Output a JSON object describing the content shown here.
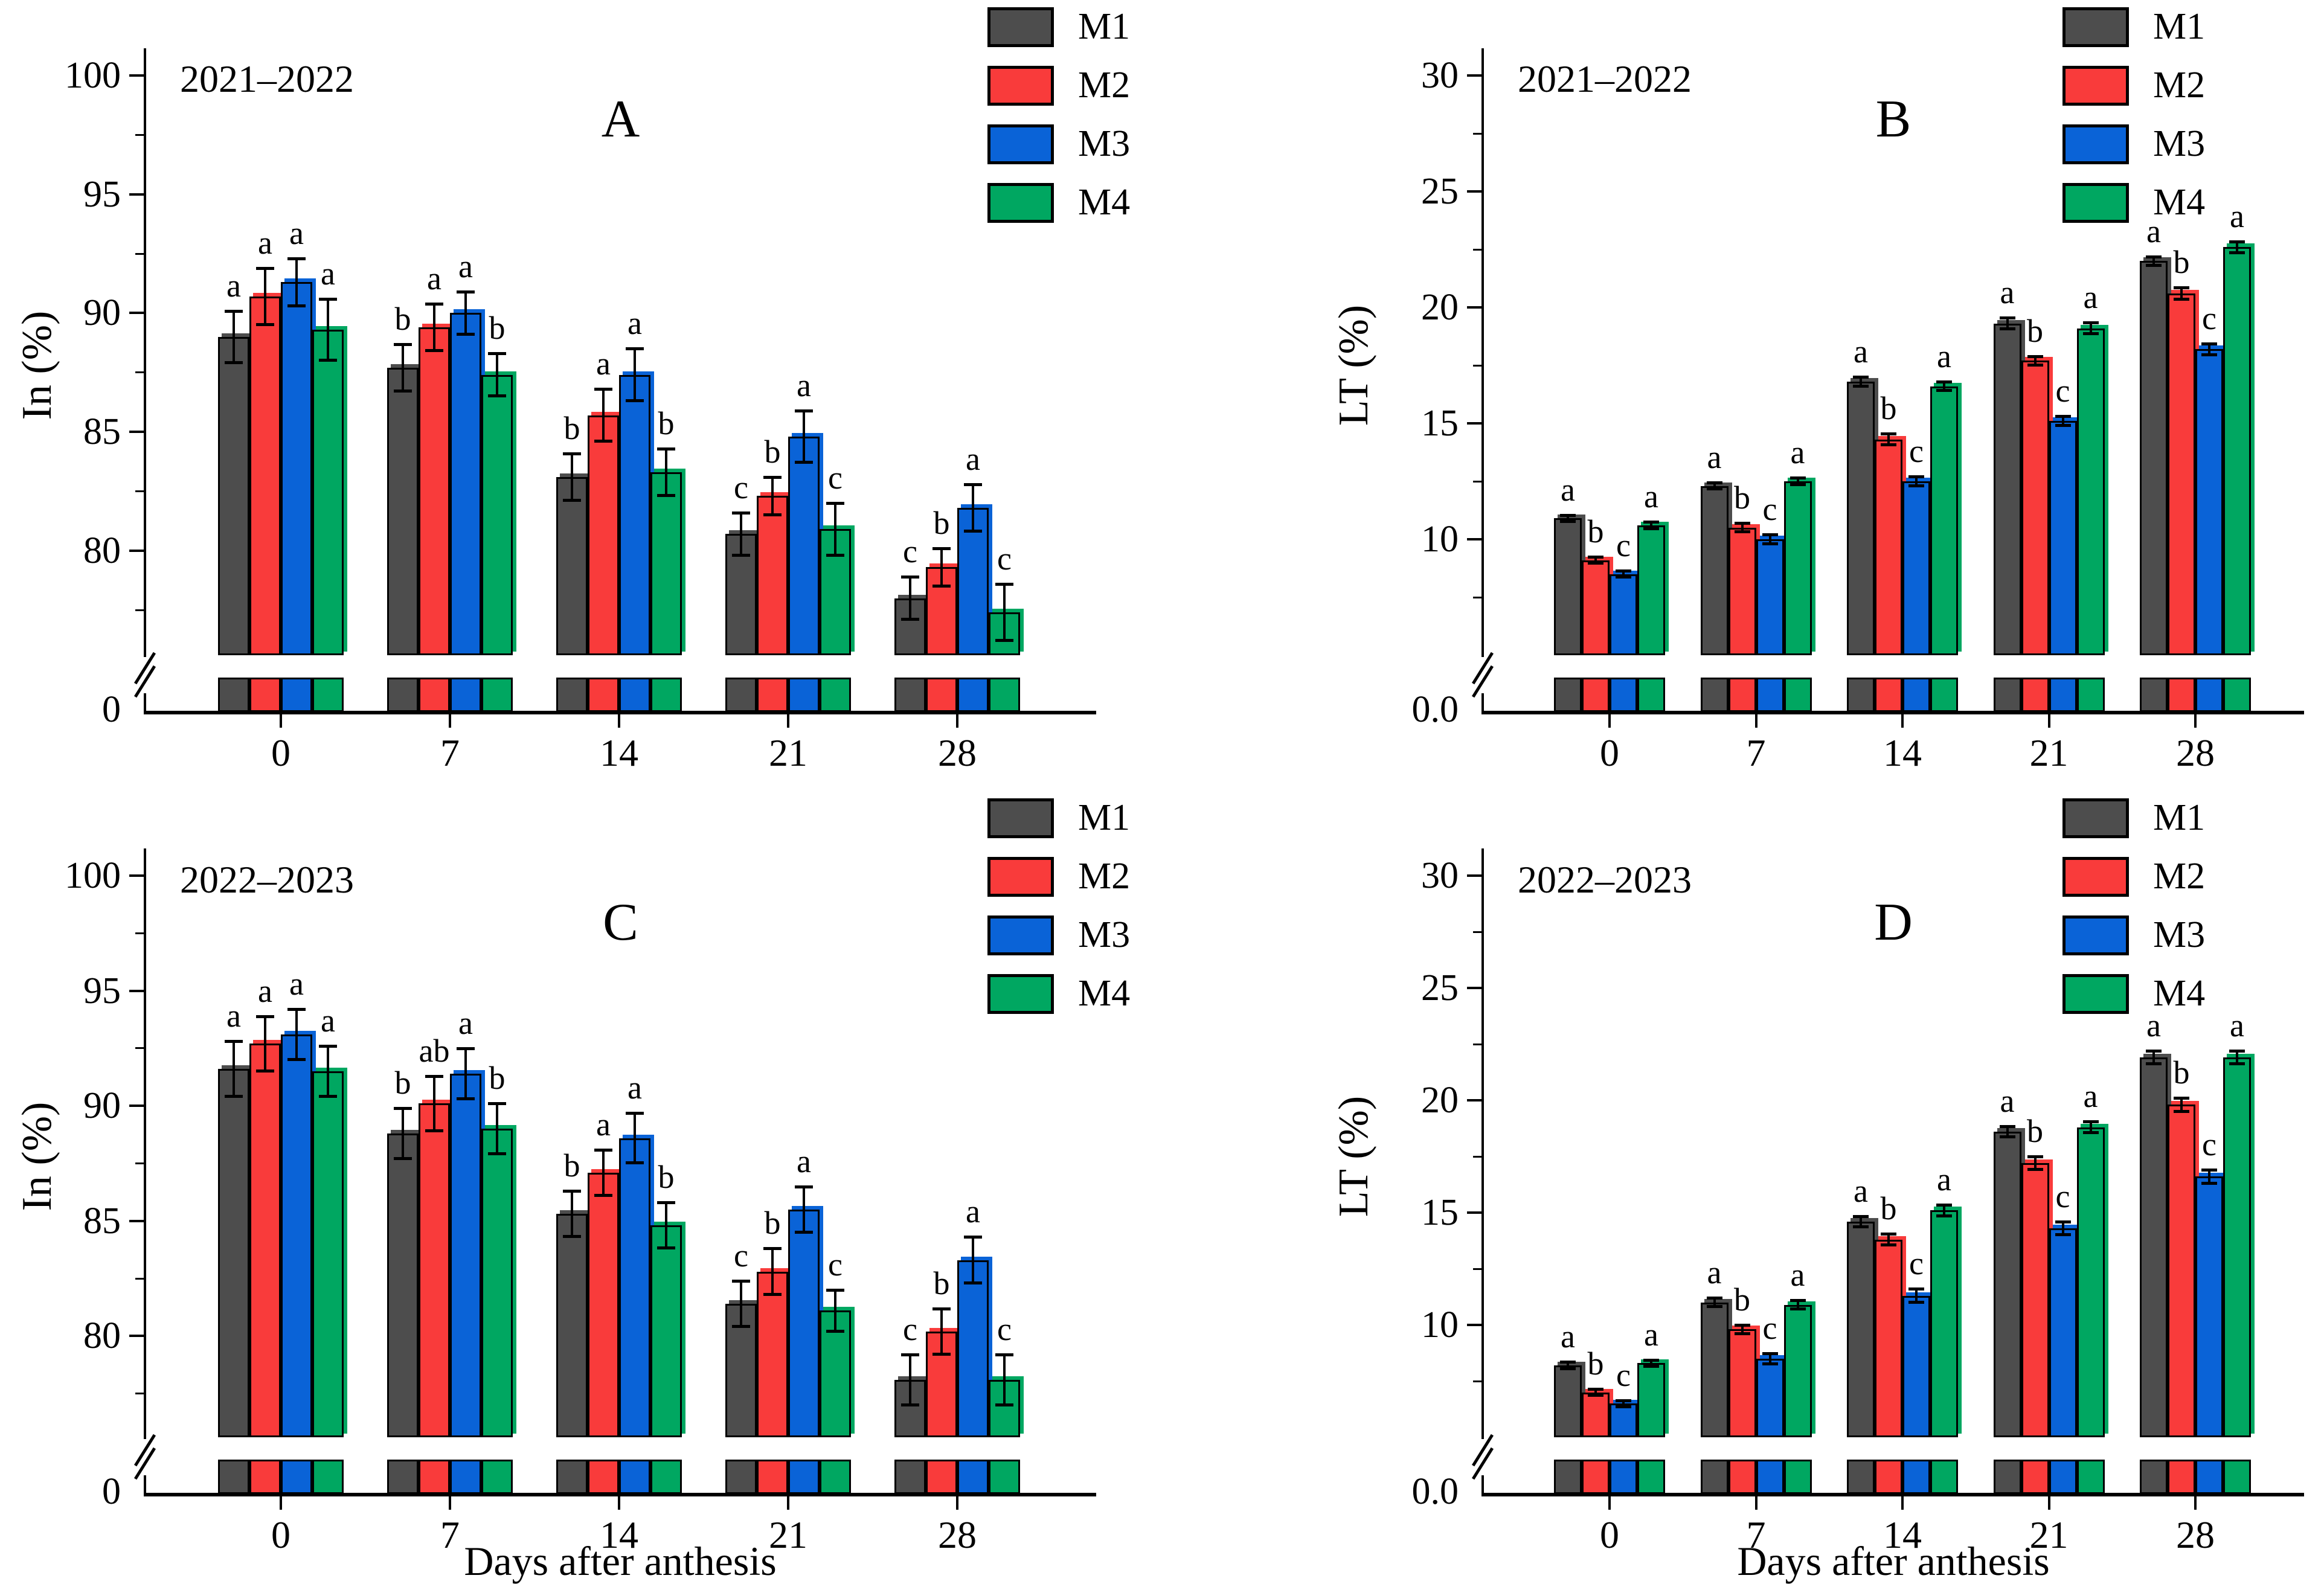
{
  "figure": {
    "xlabel": "Days after anthesis",
    "legend_labels": [
      "M1",
      "M2",
      "M3",
      "M4"
    ],
    "colors": {
      "M1": "#4D4D4D",
      "M2": "#F93B3B",
      "M3": "#0A63D7",
      "M4": "#00A761"
    }
  },
  "chart_data": [
    {
      "panel": "A",
      "type": "bar",
      "season": "2021–2022",
      "ylabel": "In (%)",
      "categories": [
        "0",
        "7",
        "14",
        "21",
        "28"
      ],
      "ylim_main": [
        75.6,
        100
      ],
      "yticks": [
        80,
        85,
        90,
        95,
        100
      ],
      "yticks_minor": [
        77.5,
        82.5,
        87.5,
        92.5,
        97.5
      ],
      "broken_axis_label": "0",
      "grid": false,
      "legend_position": "top-right",
      "series": [
        {
          "name": "M1",
          "color": "#4D4D4D",
          "values": [
            89.0,
            87.7,
            83.1,
            80.7,
            78.0
          ],
          "errors": [
            1.1,
            1.0,
            1.0,
            0.9,
            0.9
          ],
          "letters": [
            "a",
            "b",
            "b",
            "c",
            "c"
          ]
        },
        {
          "name": "M2",
          "color": "#F93B3B",
          "values": [
            90.7,
            89.4,
            85.7,
            82.3,
            79.3
          ],
          "errors": [
            1.2,
            1.0,
            1.1,
            0.8,
            0.8
          ],
          "letters": [
            "a",
            "a",
            "a",
            "b",
            "b"
          ]
        },
        {
          "name": "M3",
          "color": "#0A63D7",
          "values": [
            91.3,
            90.0,
            87.4,
            84.8,
            81.8
          ],
          "errors": [
            1.0,
            0.9,
            1.1,
            1.1,
            1.0
          ],
          "letters": [
            "a",
            "a",
            "a",
            "a",
            "a"
          ]
        },
        {
          "name": "M4",
          "color": "#00A761",
          "values": [
            89.3,
            87.4,
            83.3,
            80.9,
            77.4
          ],
          "errors": [
            1.3,
            0.9,
            1.0,
            1.1,
            1.2
          ],
          "letters": [
            "a",
            "b",
            "b",
            "c",
            "c"
          ]
        }
      ]
    },
    {
      "panel": "B",
      "type": "bar",
      "season": "2021–2022",
      "ylabel": "LT (%)",
      "categories": [
        "0",
        "7",
        "14",
        "21",
        "28"
      ],
      "ylim_main": [
        5.0,
        30
      ],
      "yticks": [
        10,
        15,
        20,
        25,
        30
      ],
      "yticks_minor": [
        7.5,
        12.5,
        17.5,
        22.5,
        27.5
      ],
      "broken_axis_label": "0.0",
      "grid": false,
      "legend_position": "top-right",
      "series": [
        {
          "name": "M1",
          "color": "#4D4D4D",
          "values": [
            10.9,
            12.3,
            16.8,
            19.3,
            22.0
          ],
          "errors": [
            0.15,
            0.15,
            0.2,
            0.25,
            0.2
          ],
          "letters": [
            "a",
            "a",
            "a",
            "a",
            "a"
          ]
        },
        {
          "name": "M2",
          "color": "#F93B3B",
          "values": [
            9.1,
            10.5,
            14.3,
            17.7,
            20.6
          ],
          "errors": [
            0.15,
            0.2,
            0.25,
            0.2,
            0.25
          ],
          "letters": [
            "b",
            "b",
            "b",
            "b",
            "b"
          ]
        },
        {
          "name": "M3",
          "color": "#0A63D7",
          "values": [
            8.5,
            10.0,
            12.5,
            15.1,
            18.2
          ],
          "errors": [
            0.15,
            0.2,
            0.2,
            0.2,
            0.25
          ],
          "letters": [
            "c",
            "c",
            "c",
            "c",
            "c"
          ]
        },
        {
          "name": "M4",
          "color": "#00A761",
          "values": [
            10.6,
            12.5,
            16.6,
            19.1,
            22.6
          ],
          "errors": [
            0.15,
            0.15,
            0.2,
            0.25,
            0.25
          ],
          "letters": [
            "a",
            "a",
            "a",
            "a",
            "a"
          ]
        }
      ]
    },
    {
      "panel": "C",
      "type": "bar",
      "season": "2022–2023",
      "ylabel": "In (%)",
      "categories": [
        "0",
        "7",
        "14",
        "21",
        "28"
      ],
      "ylim_main": [
        75.6,
        100
      ],
      "yticks": [
        80,
        85,
        90,
        95,
        100
      ],
      "yticks_minor": [
        77.5,
        82.5,
        87.5,
        92.5,
        97.5
      ],
      "broken_axis_label": "0",
      "grid": false,
      "legend_position": "top-right",
      "series": [
        {
          "name": "M1",
          "color": "#4D4D4D",
          "values": [
            91.6,
            88.8,
            85.3,
            81.4,
            78.1
          ],
          "errors": [
            1.2,
            1.1,
            1.0,
            1.0,
            1.1
          ],
          "letters": [
            "a",
            "b",
            "b",
            "c",
            "c"
          ]
        },
        {
          "name": "M2",
          "color": "#F93B3B",
          "values": [
            92.7,
            90.1,
            87.1,
            82.8,
            80.2
          ],
          "errors": [
            1.2,
            1.2,
            1.0,
            1.0,
            1.0
          ],
          "letters": [
            "a",
            "ab",
            "a",
            "b",
            "b"
          ]
        },
        {
          "name": "M3",
          "color": "#0A63D7",
          "values": [
            93.1,
            91.4,
            88.6,
            85.5,
            83.3
          ],
          "errors": [
            1.1,
            1.1,
            1.1,
            1.0,
            1.0
          ],
          "letters": [
            "a",
            "a",
            "a",
            "a",
            "a"
          ]
        },
        {
          "name": "M4",
          "color": "#00A761",
          "values": [
            91.5,
            89.0,
            84.8,
            81.1,
            78.1
          ],
          "errors": [
            1.1,
            1.1,
            1.0,
            0.9,
            1.1
          ],
          "letters": [
            "a",
            "b",
            "b",
            "c",
            "c"
          ]
        }
      ]
    },
    {
      "panel": "D",
      "type": "bar",
      "season": "2022–2023",
      "ylabel": "LT (%)",
      "categories": [
        "0",
        "7",
        "14",
        "21",
        "28"
      ],
      "ylim_main": [
        5.0,
        30
      ],
      "yticks": [
        10,
        15,
        20,
        25,
        30
      ],
      "yticks_minor": [
        7.5,
        12.5,
        17.5,
        22.5,
        27.5
      ],
      "broken_axis_label": "0.0",
      "grid": false,
      "legend_position": "top-right",
      "series": [
        {
          "name": "M1",
          "color": "#4D4D4D",
          "values": [
            8.2,
            11.0,
            14.6,
            18.6,
            21.9
          ],
          "errors": [
            0.15,
            0.2,
            0.25,
            0.25,
            0.3
          ],
          "letters": [
            "a",
            "a",
            "a",
            "a",
            "a"
          ]
        },
        {
          "name": "M2",
          "color": "#F93B3B",
          "values": [
            7.0,
            9.8,
            13.8,
            17.2,
            19.8
          ],
          "errors": [
            0.15,
            0.2,
            0.25,
            0.3,
            0.3
          ],
          "letters": [
            "b",
            "b",
            "b",
            "b",
            "b"
          ]
        },
        {
          "name": "M3",
          "color": "#0A63D7",
          "values": [
            6.5,
            8.5,
            11.3,
            14.3,
            16.6
          ],
          "errors": [
            0.15,
            0.25,
            0.3,
            0.3,
            0.3
          ],
          "letters": [
            "c",
            "c",
            "c",
            "c",
            "c"
          ]
        },
        {
          "name": "M4",
          "color": "#00A761",
          "values": [
            8.3,
            10.9,
            15.1,
            18.8,
            21.9
          ],
          "errors": [
            0.15,
            0.2,
            0.25,
            0.25,
            0.3
          ],
          "letters": [
            "a",
            "a",
            "a",
            "a",
            "a"
          ]
        }
      ]
    }
  ]
}
